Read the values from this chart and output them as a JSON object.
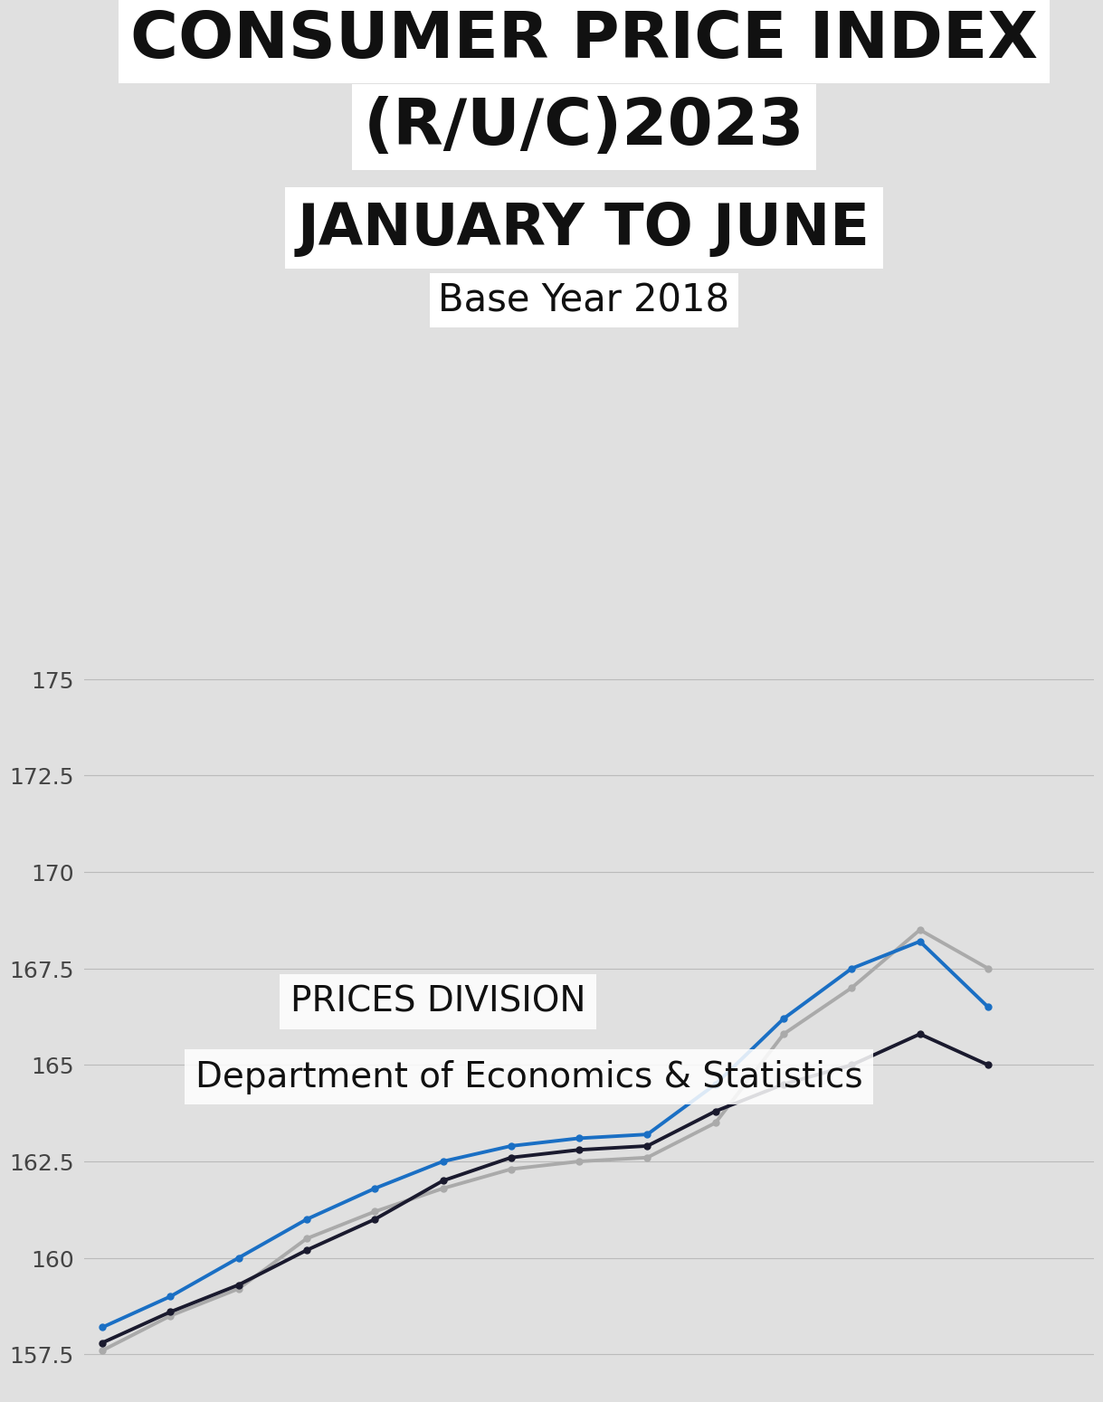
{
  "title_line1": "CONSUMER PRICE INDEX",
  "title_line2": "(R/U/C)2023",
  "subtitle1": "JANUARY TO JUNE",
  "subtitle2": "Base Year 2018",
  "watermark1": "PRICES DIVISION",
  "watermark2": "Department of Economics & Statistics",
  "rural": [
    157.6,
    158.5,
    159.2,
    160.5,
    161.2,
    161.8,
    162.3,
    162.5,
    162.6,
    163.5,
    165.8,
    167.0,
    168.5,
    167.5
  ],
  "urban": [
    158.2,
    159.0,
    160.0,
    161.0,
    161.8,
    162.5,
    162.9,
    163.1,
    163.2,
    164.5,
    166.2,
    167.5,
    168.2,
    166.5
  ],
  "combined": [
    157.8,
    158.6,
    159.3,
    160.2,
    161.0,
    162.0,
    162.6,
    162.8,
    162.9,
    163.8,
    164.5,
    165.0,
    165.8,
    165.0
  ],
  "rural_color": "#aaaaaa",
  "urban_color": "#1a6fc4",
  "combined_color": "#1a1a2e",
  "ylim": [
    156.5,
    176.0
  ],
  "yticks": [
    157.5,
    160.0,
    162.5,
    165.0,
    167.5,
    170.0,
    172.5,
    175.0
  ],
  "bg_color": "#e0e0e0",
  "title_fontsize": 52,
  "subtitle1_fontsize": 46,
  "subtitle2_fontsize": 30,
  "watermark_fontsize": 28
}
